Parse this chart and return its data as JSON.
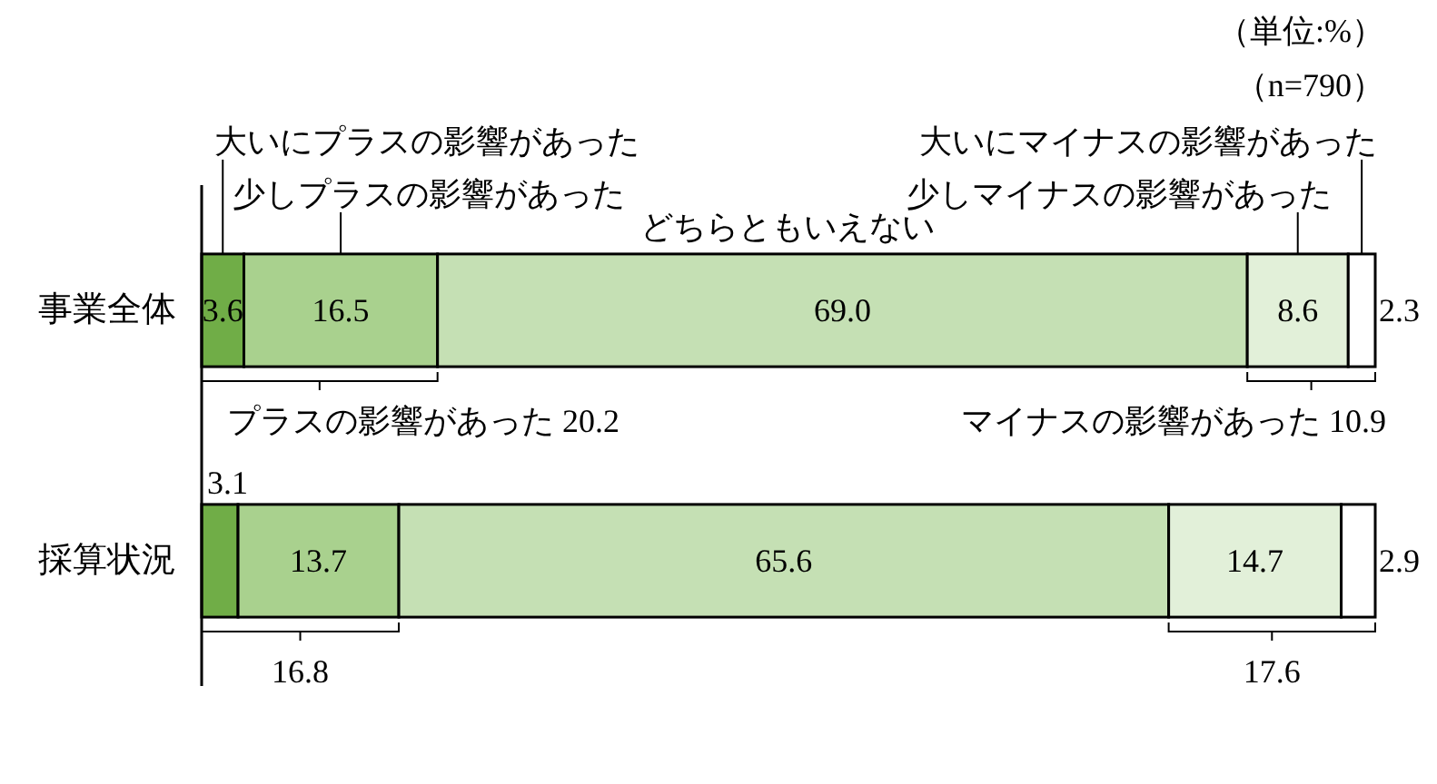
{
  "chart_data": {
    "type": "bar",
    "orientation": "horizontal",
    "stacked": true,
    "tick_labels": "y",
    "categories": [
      "事業全体",
      "採算状況"
    ],
    "series": [
      {
        "name": "大いにプラスの影響があった",
        "color": "#70ad47",
        "values": [
          3.6,
          3.1
        ],
        "value_labels": [
          "3.6",
          "3.1"
        ]
      },
      {
        "name": "少しプラスの影響があった",
        "color": "#a9d18e",
        "values": [
          16.5,
          13.7
        ],
        "value_labels": [
          "16.5",
          "13.7"
        ]
      },
      {
        "name": "どちらともいえない",
        "color": "#c5e0b4",
        "values": [
          69.0,
          65.6
        ],
        "value_labels": [
          "69.0",
          "65.6"
        ]
      },
      {
        "name": "少しマイナスの影響があった",
        "color": "#e2f0d9",
        "values": [
          8.6,
          14.7
        ],
        "value_labels": [
          "8.6",
          "14.7"
        ]
      },
      {
        "name": "大いにマイナスの影響があった",
        "color": "#ffffff",
        "values": [
          2.3,
          2.9
        ],
        "value_labels": [
          "2.3",
          "2.9"
        ]
      }
    ],
    "annotations": [
      "（単位:%）",
      "（n=790）",
      "プラスの影響があった 20.2",
      "マイナスの影響があった 10.9",
      "16.8",
      "17.6"
    ]
  }
}
